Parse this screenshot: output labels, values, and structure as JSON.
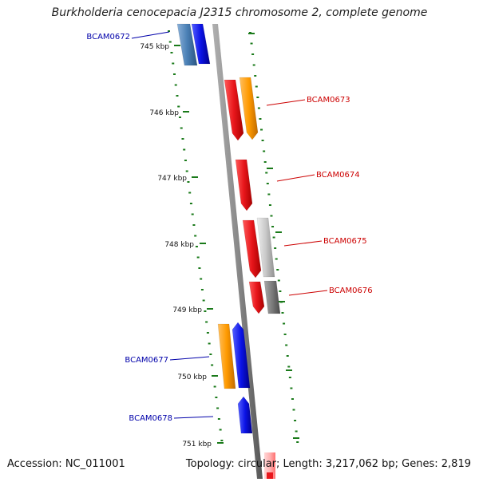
{
  "title": "Burkholderia cenocepacia J2315 chromosome 2, complete genome",
  "footer": {
    "accession": "Accession: NC_011001",
    "summary": "Topology: circular; Length: 3,217,062 bp; Genes: 2,819"
  },
  "ticks": [
    "745 kbp",
    "746 kbp",
    "747 kbp",
    "748 kbp",
    "749 kbp",
    "750 kbp",
    "751 kbp"
  ],
  "gene_labels": {
    "BCAM0672": "BCAM0672",
    "BCAM0673": "BCAM0673",
    "BCAM0674": "BCAM0674",
    "BCAM0675": "BCAM0675",
    "BCAM0676": "BCAM0676",
    "BCAM0677": "BCAM0677",
    "BCAM0678": "BCAM0678"
  },
  "colors": {
    "forward_label": "#0000aa",
    "reverse_label": "#cc0000",
    "backbone": "#8a8a8a",
    "gc_dots": "#1a7a1a",
    "red": "#e8161b",
    "orange": "#ff9a00",
    "blue": "#0b13e6",
    "steelblue": "#4a7fb5",
    "lightgray": "#c8c8c8",
    "darkgray": "#7a7a7a",
    "pink": "#ffb3b3"
  }
}
